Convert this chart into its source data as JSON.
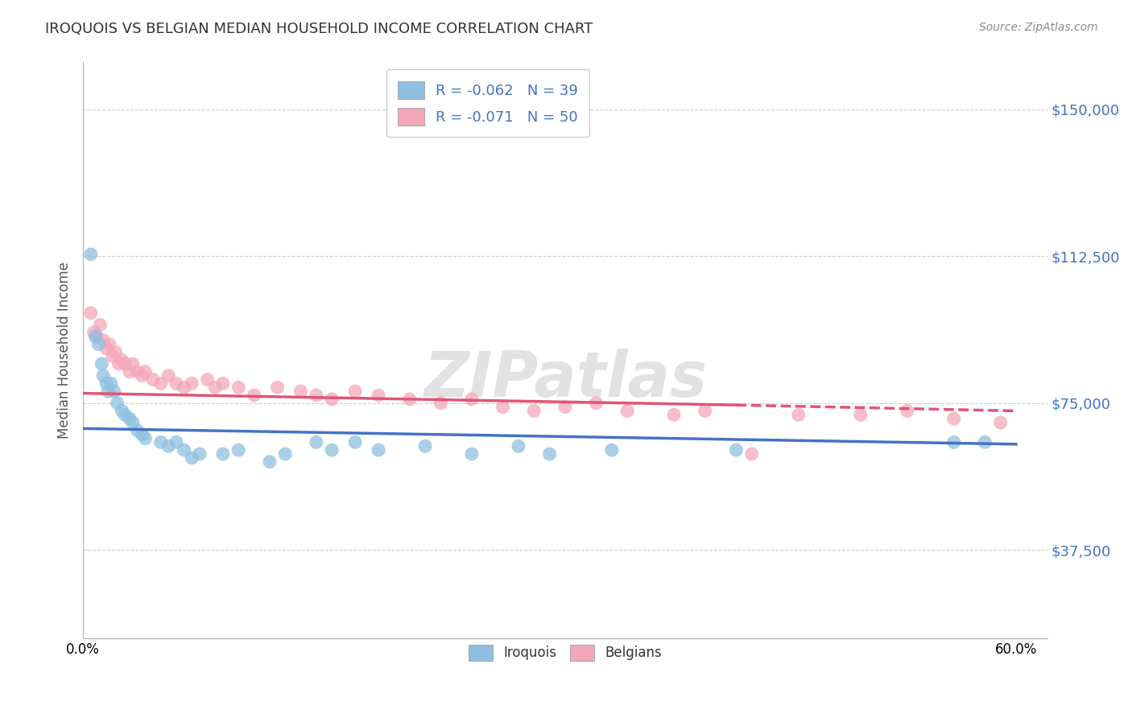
{
  "title": "IROQUOIS VS BELGIAN MEDIAN HOUSEHOLD INCOME CORRELATION CHART",
  "source": "Source: ZipAtlas.com",
  "ylabel": "Median Household Income",
  "xlim": [
    0.0,
    0.62
  ],
  "ylim": [
    15000,
    162000
  ],
  "yticks": [
    37500,
    75000,
    112500,
    150000
  ],
  "ytick_labels": [
    "$37,500",
    "$75,000",
    "$112,500",
    "$150,000"
  ],
  "xticks": [
    0.0,
    0.1,
    0.2,
    0.3,
    0.4,
    0.5,
    0.6
  ],
  "xtick_labels": [
    "0.0%",
    "",
    "",
    "",
    "",
    "",
    "60.0%"
  ],
  "legend_iroquois": "R = -0.062   N = 39",
  "legend_belgians": "R = -0.071   N = 50",
  "iroquois_color": "#8fbfe0",
  "belgians_color": "#f4a7b9",
  "iroquois_line_color": "#4472c4",
  "belgians_line_color": "#e05575",
  "watermark": "ZIPatlas",
  "iroquois_line": [
    0.0,
    68500,
    0.6,
    64500
  ],
  "belgians_line_solid": [
    0.0,
    77500,
    0.42,
    74500
  ],
  "belgians_line_dash": [
    0.42,
    74500,
    0.6,
    73000
  ],
  "iroquois_x": [
    0.005,
    0.008,
    0.01,
    0.012,
    0.013,
    0.015,
    0.016,
    0.018,
    0.02,
    0.022,
    0.025,
    0.027,
    0.03,
    0.032,
    0.035,
    0.038,
    0.04,
    0.05,
    0.055,
    0.06,
    0.065,
    0.07,
    0.075,
    0.09,
    0.1,
    0.12,
    0.13,
    0.15,
    0.16,
    0.175,
    0.19,
    0.22,
    0.25,
    0.28,
    0.3,
    0.34,
    0.42,
    0.56,
    0.58
  ],
  "iroquois_y": [
    113000,
    92000,
    90000,
    85000,
    82000,
    80000,
    78000,
    80000,
    78000,
    75000,
    73000,
    72000,
    71000,
    70000,
    68000,
    67000,
    66000,
    65000,
    64000,
    65000,
    63000,
    61000,
    62000,
    62000,
    63000,
    60000,
    62000,
    65000,
    63000,
    65000,
    63000,
    64000,
    62000,
    64000,
    62000,
    63000,
    63000,
    65000,
    65000
  ],
  "belgians_x": [
    0.005,
    0.007,
    0.009,
    0.011,
    0.013,
    0.015,
    0.017,
    0.019,
    0.021,
    0.023,
    0.025,
    0.027,
    0.03,
    0.032,
    0.035,
    0.038,
    0.04,
    0.045,
    0.05,
    0.055,
    0.06,
    0.065,
    0.07,
    0.08,
    0.085,
    0.09,
    0.1,
    0.11,
    0.125,
    0.14,
    0.15,
    0.16,
    0.175,
    0.19,
    0.21,
    0.23,
    0.25,
    0.27,
    0.29,
    0.31,
    0.33,
    0.35,
    0.38,
    0.4,
    0.43,
    0.46,
    0.5,
    0.53,
    0.56,
    0.59
  ],
  "belgians_y": [
    98000,
    93000,
    92000,
    95000,
    91000,
    89000,
    90000,
    87000,
    88000,
    85000,
    86000,
    85000,
    83000,
    85000,
    83000,
    82000,
    83000,
    81000,
    80000,
    82000,
    80000,
    79000,
    80000,
    81000,
    79000,
    80000,
    79000,
    77000,
    79000,
    78000,
    77000,
    76000,
    78000,
    77000,
    76000,
    75000,
    76000,
    74000,
    73000,
    74000,
    75000,
    73000,
    72000,
    73000,
    62000,
    72000,
    72000,
    73000,
    71000,
    70000
  ]
}
